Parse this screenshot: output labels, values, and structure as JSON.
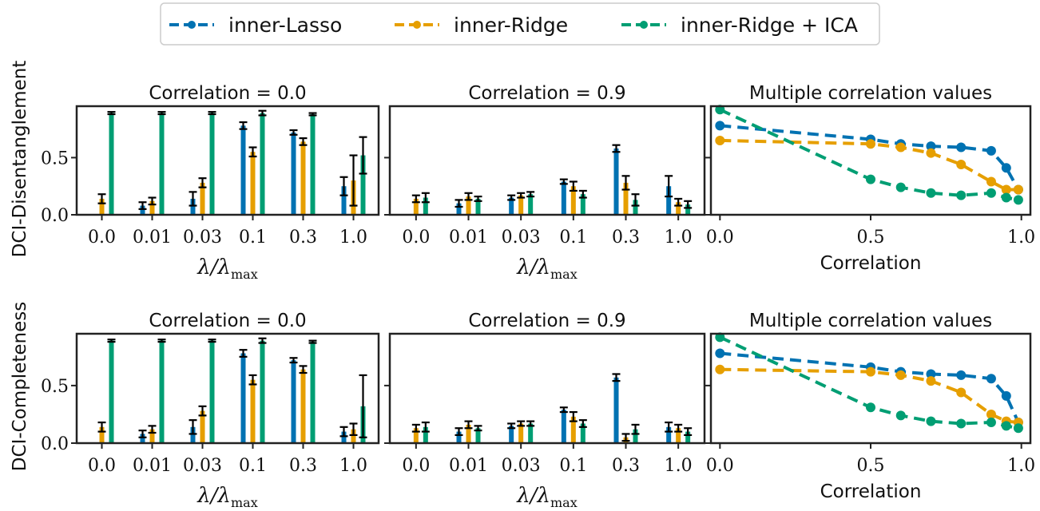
{
  "legend": {
    "position": "top-center",
    "entries": [
      {
        "label": "inner-Lasso",
        "color": "#0072b2"
      },
      {
        "label": "inner-Ridge",
        "color": "#e69f00"
      },
      {
        "label": "inner-Ridge + ICA",
        "color": "#009e73"
      }
    ]
  },
  "rows": [
    {
      "ylabel": "DCI-Disentanglement"
    },
    {
      "ylabel": "DCI-Completeness"
    }
  ],
  "chart_data": [
    {
      "type": "bar",
      "row": 0,
      "col": 0,
      "title": "Correlation = 0.0",
      "xlabel": "λ/λ_max",
      "categories": [
        "0.0",
        "0.01",
        "0.03",
        "0.1",
        "0.3",
        "1.0"
      ],
      "yticks": [
        "0.0",
        "0.5"
      ],
      "ylim": [
        0,
        0.95
      ],
      "series": [
        {
          "name": "inner-Lasso",
          "values": [
            0.0,
            0.08,
            0.14,
            0.78,
            0.72,
            0.25
          ],
          "err": [
            0.0,
            0.03,
            0.06,
            0.03,
            0.02,
            0.08
          ]
        },
        {
          "name": "inner-Ridge",
          "values": [
            0.14,
            0.12,
            0.28,
            0.55,
            0.64,
            0.3
          ],
          "err": [
            0.04,
            0.03,
            0.04,
            0.04,
            0.03,
            0.22
          ]
        },
        {
          "name": "inner-Ridge + ICA",
          "values": [
            0.89,
            0.89,
            0.89,
            0.89,
            0.88,
            0.52
          ],
          "err": [
            0.01,
            0.01,
            0.01,
            0.02,
            0.01,
            0.16
          ]
        }
      ]
    },
    {
      "type": "bar",
      "row": 0,
      "col": 1,
      "title": "Correlation = 0.9",
      "xlabel": "λ/λ_max",
      "categories": [
        "0.0",
        "0.01",
        "0.03",
        "0.1",
        "0.3",
        "1.0"
      ],
      "yticks": [],
      "ylim": [
        0,
        0.95
      ],
      "series": [
        {
          "name": "inner-Lasso",
          "values": [
            0.0,
            0.1,
            0.15,
            0.29,
            0.58,
            0.25
          ],
          "err": [
            0.0,
            0.03,
            0.02,
            0.02,
            0.03,
            0.09
          ]
        },
        {
          "name": "inner-Ridge",
          "values": [
            0.14,
            0.16,
            0.17,
            0.25,
            0.28,
            0.11
          ],
          "err": [
            0.03,
            0.03,
            0.02,
            0.04,
            0.06,
            0.03
          ]
        },
        {
          "name": "inner-Ridge + ICA",
          "values": [
            0.15,
            0.14,
            0.18,
            0.18,
            0.13,
            0.09
          ],
          "err": [
            0.04,
            0.02,
            0.02,
            0.03,
            0.05,
            0.03
          ]
        }
      ]
    },
    {
      "type": "line",
      "row": 0,
      "col": 2,
      "title": "Multiple correlation values",
      "xlabel": "Correlation",
      "xticks": [
        "0.0",
        "0.5",
        "1.0"
      ],
      "xlim": [
        -0.03,
        1.03
      ],
      "ylim": [
        0,
        0.95
      ],
      "series": [
        {
          "name": "inner-Lasso",
          "x": [
            0.0,
            0.5,
            0.6,
            0.7,
            0.8,
            0.9,
            0.95,
            0.99
          ],
          "y": [
            0.78,
            0.66,
            0.62,
            0.6,
            0.59,
            0.56,
            0.41,
            0.22
          ]
        },
        {
          "name": "inner-Ridge",
          "x": [
            0.0,
            0.5,
            0.6,
            0.7,
            0.8,
            0.9,
            0.95,
            0.99
          ],
          "y": [
            0.65,
            0.62,
            0.59,
            0.54,
            0.44,
            0.29,
            0.22,
            0.22
          ]
        },
        {
          "name": "inner-Ridge + ICA",
          "x": [
            0.0,
            0.5,
            0.6,
            0.7,
            0.8,
            0.9,
            0.95,
            0.99
          ],
          "y": [
            0.92,
            0.31,
            0.24,
            0.19,
            0.17,
            0.19,
            0.15,
            0.13
          ]
        }
      ]
    },
    {
      "type": "bar",
      "row": 1,
      "col": 0,
      "title": "Correlation = 0.0",
      "xlabel": "λ/λ_max",
      "categories": [
        "0.0",
        "0.01",
        "0.03",
        "0.1",
        "0.3",
        "1.0"
      ],
      "yticks": [
        "0.0",
        "0.5"
      ],
      "ylim": [
        0,
        0.95
      ],
      "series": [
        {
          "name": "inner-Lasso",
          "values": [
            0.0,
            0.08,
            0.14,
            0.78,
            0.72,
            0.1
          ],
          "err": [
            0.0,
            0.03,
            0.06,
            0.03,
            0.02,
            0.04
          ]
        },
        {
          "name": "inner-Ridge",
          "values": [
            0.14,
            0.12,
            0.28,
            0.55,
            0.64,
            0.12
          ],
          "err": [
            0.04,
            0.03,
            0.04,
            0.04,
            0.03,
            0.05
          ]
        },
        {
          "name": "inner-Ridge + ICA",
          "values": [
            0.89,
            0.89,
            0.89,
            0.89,
            0.88,
            0.32
          ],
          "err": [
            0.01,
            0.01,
            0.01,
            0.02,
            0.01,
            0.27
          ]
        }
      ]
    },
    {
      "type": "bar",
      "row": 1,
      "col": 1,
      "title": "Correlation = 0.9",
      "xlabel": "λ/λ_max",
      "categories": [
        "0.0",
        "0.01",
        "0.03",
        "0.1",
        "0.3",
        "1.0"
      ],
      "yticks": [],
      "ylim": [
        0,
        0.95
      ],
      "series": [
        {
          "name": "inner-Lasso",
          "values": [
            0.0,
            0.1,
            0.15,
            0.29,
            0.57,
            0.14
          ],
          "err": [
            0.0,
            0.03,
            0.02,
            0.02,
            0.03,
            0.04
          ]
        },
        {
          "name": "inner-Ridge",
          "values": [
            0.13,
            0.16,
            0.17,
            0.23,
            0.05,
            0.13
          ],
          "err": [
            0.03,
            0.03,
            0.02,
            0.04,
            0.03,
            0.03
          ]
        },
        {
          "name": "inner-Ridge + ICA",
          "values": [
            0.14,
            0.13,
            0.17,
            0.17,
            0.12,
            0.1
          ],
          "err": [
            0.04,
            0.02,
            0.02,
            0.03,
            0.04,
            0.03
          ]
        }
      ]
    },
    {
      "type": "line",
      "row": 1,
      "col": 2,
      "title": "Multiple correlation values",
      "xlabel": "Correlation",
      "xticks": [
        "0.0",
        "0.5",
        "1.0"
      ],
      "xlim": [
        -0.03,
        1.03
      ],
      "ylim": [
        0,
        0.95
      ],
      "series": [
        {
          "name": "inner-Lasso",
          "x": [
            0.0,
            0.5,
            0.6,
            0.7,
            0.8,
            0.9,
            0.95,
            0.99
          ],
          "y": [
            0.78,
            0.66,
            0.62,
            0.6,
            0.59,
            0.56,
            0.41,
            0.18
          ]
        },
        {
          "name": "inner-Ridge",
          "x": [
            0.0,
            0.5,
            0.6,
            0.7,
            0.8,
            0.9,
            0.95,
            0.99
          ],
          "y": [
            0.64,
            0.62,
            0.59,
            0.54,
            0.44,
            0.25,
            0.19,
            0.18
          ]
        },
        {
          "name": "inner-Ridge + ICA",
          "x": [
            0.0,
            0.5,
            0.6,
            0.7,
            0.8,
            0.9,
            0.95,
            0.99
          ],
          "y": [
            0.92,
            0.31,
            0.24,
            0.19,
            0.17,
            0.18,
            0.15,
            0.13
          ]
        }
      ]
    }
  ]
}
